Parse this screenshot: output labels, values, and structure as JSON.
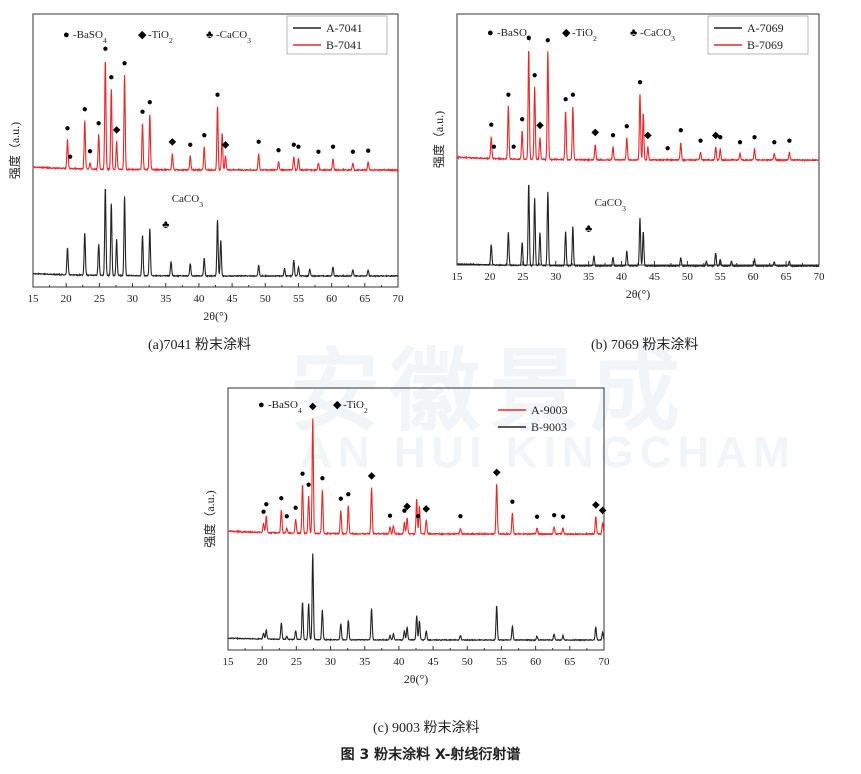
{
  "figure_title": "图 3  粉末涂料 X-射线衍射谱",
  "captions": {
    "a": "(a)7041 粉末涂料",
    "b": "(b) 7069 粉末涂料",
    "c": "(c) 9003 粉末涂料"
  },
  "watermark": {
    "main": "安徽景成",
    "sub": "AN HUI KINGCHAM"
  },
  "colors": {
    "red": "#e8272a",
    "black": "#222222",
    "axis": "#333333"
  },
  "chart_data": [
    {
      "id": "a",
      "type": "line",
      "xlabel": "2θ(°)",
      "ylabel": "强度（a.u.)",
      "xlim": [
        15,
        70
      ],
      "xticks": [
        "15",
        "20",
        "25",
        "30",
        "35",
        "40",
        "45",
        "50",
        "55",
        "60",
        "65",
        "70"
      ],
      "legend_markers": [
        {
          "symbol": "●",
          "label": "BaSO4"
        },
        {
          "symbol": "◆",
          "label": "TiO2"
        },
        {
          "symbol": "♣",
          "label": "CaCO3"
        }
      ],
      "series": [
        {
          "name": "A-7041",
          "color": "black",
          "peaks": [
            [
              20.2,
              0.3
            ],
            [
              22.8,
              0.47
            ],
            [
              24.9,
              0.35
            ],
            [
              25.9,
              0.98
            ],
            [
              26.8,
              0.8
            ],
            [
              27.6,
              0.4
            ],
            [
              28.8,
              0.88
            ],
            [
              31.5,
              0.45
            ],
            [
              32.6,
              0.52
            ],
            [
              35.8,
              0.16
            ],
            [
              38.7,
              0.14
            ],
            [
              40.8,
              0.2
            ],
            [
              42.8,
              0.62
            ],
            [
              43.3,
              0.4
            ],
            [
              49.0,
              0.12
            ],
            [
              52.9,
              0.08
            ],
            [
              54.3,
              0.18
            ],
            [
              55.0,
              0.1
            ],
            [
              56.7,
              0.08
            ],
            [
              60.2,
              0.1
            ],
            [
              63.2,
              0.07
            ],
            [
              65.5,
              0.07
            ]
          ]
        },
        {
          "name": "B-7041",
          "color": "red",
          "peaks": [
            [
              20.2,
              0.25
            ],
            [
              22.8,
              0.42
            ],
            [
              23.6,
              0.05
            ],
            [
              24.9,
              0.3
            ],
            [
              25.9,
              0.95
            ],
            [
              26.8,
              0.7
            ],
            [
              27.6,
              0.24
            ],
            [
              28.8,
              0.82
            ],
            [
              31.5,
              0.4
            ],
            [
              32.6,
              0.48
            ],
            [
              36.0,
              0.14
            ],
            [
              38.7,
              0.12
            ],
            [
              40.8,
              0.2
            ],
            [
              42.8,
              0.55
            ],
            [
              43.5,
              0.32
            ],
            [
              44.0,
              0.12
            ],
            [
              49.0,
              0.14
            ],
            [
              52.0,
              0.07
            ],
            [
              54.3,
              0.12
            ],
            [
              55.0,
              0.1
            ],
            [
              58.0,
              0.06
            ],
            [
              60.2,
              0.1
            ],
            [
              63.2,
              0.06
            ],
            [
              65.5,
              0.07
            ]
          ]
        }
      ],
      "annotations": [
        {
          "text": "CaCO3",
          "x": 35.6
        }
      ],
      "peak_markers": [
        {
          "symbol": "●",
          "x": [
            20.2,
            20.6,
            22.8,
            23.6,
            24.9,
            25.9,
            26.8,
            28.8,
            31.5,
            32.6,
            38.7,
            40.8,
            42.8,
            49.0,
            52.0,
            54.3,
            55.0,
            58.0,
            60.2,
            63.2,
            65.5
          ]
        },
        {
          "symbol": "◆",
          "x": [
            27.6,
            36.0,
            44.0
          ]
        }
      ]
    },
    {
      "id": "b",
      "type": "line",
      "xlabel": "2θ(°)",
      "ylabel": "强度（a.u.)",
      "xlim": [
        15,
        70
      ],
      "xticks": [
        "15",
        "20",
        "25",
        "30",
        "35",
        "40",
        "45",
        "50",
        "55",
        "60",
        "65",
        "70"
      ],
      "legend_markers": [
        {
          "symbol": "●",
          "label": "BaSO4"
        },
        {
          "symbol": "◆",
          "label": "TiO2"
        },
        {
          "symbol": "♣",
          "label": "CaCO3"
        }
      ],
      "series": [
        {
          "name": "A-7069",
          "color": "black",
          "peaks": [
            [
              20.2,
              0.25
            ],
            [
              22.8,
              0.4
            ],
            [
              24.9,
              0.28
            ],
            [
              25.9,
              1.0
            ],
            [
              26.8,
              0.82
            ],
            [
              27.6,
              0.4
            ],
            [
              28.8,
              0.9
            ],
            [
              31.5,
              0.42
            ],
            [
              32.6,
              0.48
            ],
            [
              35.8,
              0.12
            ],
            [
              38.7,
              0.1
            ],
            [
              40.8,
              0.18
            ],
            [
              42.8,
              0.58
            ],
            [
              43.3,
              0.42
            ],
            [
              49.0,
              0.1
            ],
            [
              52.9,
              0.06
            ],
            [
              54.3,
              0.16
            ],
            [
              55.0,
              0.08
            ],
            [
              56.7,
              0.06
            ],
            [
              60.2,
              0.08
            ],
            [
              63.2,
              0.05
            ],
            [
              65.5,
              0.06
            ]
          ]
        },
        {
          "name": "B-7069",
          "color": "red",
          "peaks": [
            [
              20.2,
              0.2
            ],
            [
              22.8,
              0.48
            ],
            [
              24.9,
              0.26
            ],
            [
              25.9,
              1.0
            ],
            [
              26.8,
              0.66
            ],
            [
              27.6,
              0.2
            ],
            [
              28.8,
              0.98
            ],
            [
              31.5,
              0.44
            ],
            [
              32.6,
              0.48
            ],
            [
              36.0,
              0.14
            ],
            [
              38.7,
              0.12
            ],
            [
              40.8,
              0.2
            ],
            [
              42.8,
              0.6
            ],
            [
              43.3,
              0.42
            ],
            [
              44.0,
              0.12
            ],
            [
              49.0,
              0.16
            ],
            [
              52.0,
              0.07
            ],
            [
              54.3,
              0.12
            ],
            [
              55.0,
              0.1
            ],
            [
              58.0,
              0.06
            ],
            [
              60.2,
              0.1
            ],
            [
              63.2,
              0.06
            ],
            [
              65.5,
              0.07
            ]
          ]
        }
      ],
      "annotations": [
        {
          "text": "CaCO3",
          "x": 35.6
        }
      ],
      "peak_markers": [
        {
          "symbol": "●",
          "x": [
            20.2,
            20.6,
            22.8,
            23.6,
            24.9,
            25.9,
            26.8,
            28.8,
            31.5,
            32.6,
            38.7,
            40.8,
            42.8,
            47.0,
            49.0,
            52.0,
            55.0,
            58.0,
            60.2,
            63.2,
            65.5
          ]
        },
        {
          "symbol": "◆",
          "x": [
            27.6,
            36.0,
            44.0,
            54.3
          ]
        }
      ]
    },
    {
      "id": "c",
      "type": "line",
      "xlabel": "2θ(°)",
      "ylabel": "强度（a.u.)",
      "xlim": [
        15,
        70
      ],
      "xticks": [
        "15",
        "20",
        "25",
        "30",
        "35",
        "40",
        "45",
        "50",
        "55",
        "60",
        "65",
        "70"
      ],
      "legend_markers": [
        {
          "symbol": "●",
          "label": "BaSO4"
        },
        {
          "symbol": "◆",
          "label": "TiO2"
        }
      ],
      "series": [
        {
          "name": "A-9003",
          "color": "red",
          "peaks": [
            [
              20.2,
              0.08
            ],
            [
              20.6,
              0.14
            ],
            [
              22.8,
              0.2
            ],
            [
              23.6,
              0.04
            ],
            [
              24.9,
              0.12
            ],
            [
              25.9,
              0.42
            ],
            [
              26.8,
              0.32
            ],
            [
              27.4,
              1.0
            ],
            [
              28.8,
              0.38
            ],
            [
              31.5,
              0.2
            ],
            [
              32.6,
              0.24
            ],
            [
              36.0,
              0.4
            ],
            [
              38.7,
              0.06
            ],
            [
              39.2,
              0.07
            ],
            [
              40.8,
              0.1
            ],
            [
              41.2,
              0.14
            ],
            [
              42.6,
              0.3
            ],
            [
              43.0,
              0.24
            ],
            [
              44.0,
              0.12
            ],
            [
              49.0,
              0.05
            ],
            [
              54.3,
              0.44
            ],
            [
              56.6,
              0.18
            ],
            [
              60.2,
              0.05
            ],
            [
              62.7,
              0.06
            ],
            [
              64.0,
              0.05
            ],
            [
              68.8,
              0.15
            ],
            [
              69.8,
              0.1
            ]
          ]
        },
        {
          "name": "B-9003",
          "color": "black",
          "peaks": [
            [
              20.2,
              0.08
            ],
            [
              20.6,
              0.12
            ],
            [
              22.8,
              0.22
            ],
            [
              23.6,
              0.04
            ],
            [
              24.9,
              0.12
            ],
            [
              25.9,
              0.5
            ],
            [
              26.8,
              0.48
            ],
            [
              27.4,
              1.15
            ],
            [
              28.8,
              0.4
            ],
            [
              31.5,
              0.22
            ],
            [
              32.6,
              0.26
            ],
            [
              36.0,
              0.42
            ],
            [
              38.7,
              0.06
            ],
            [
              39.2,
              0.08
            ],
            [
              40.8,
              0.12
            ],
            [
              41.2,
              0.17
            ],
            [
              42.6,
              0.32
            ],
            [
              43.0,
              0.25
            ],
            [
              44.0,
              0.12
            ],
            [
              49.0,
              0.06
            ],
            [
              54.3,
              0.46
            ],
            [
              56.6,
              0.18
            ],
            [
              60.2,
              0.05
            ],
            [
              62.7,
              0.08
            ],
            [
              64.0,
              0.06
            ],
            [
              68.8,
              0.17
            ],
            [
              69.8,
              0.1
            ]
          ]
        }
      ],
      "annotations": [],
      "peak_markers": [
        {
          "symbol": "●",
          "x": [
            20.2,
            20.6,
            22.8,
            23.6,
            24.9,
            25.9,
            26.8,
            28.8,
            31.5,
            32.6,
            38.7,
            40.8,
            42.8,
            49.0,
            56.6,
            60.2,
            62.7,
            64.0
          ]
        },
        {
          "symbol": "◆",
          "x": [
            27.4,
            36.0,
            41.2,
            44.0,
            54.3,
            68.8,
            69.8
          ]
        }
      ]
    }
  ]
}
